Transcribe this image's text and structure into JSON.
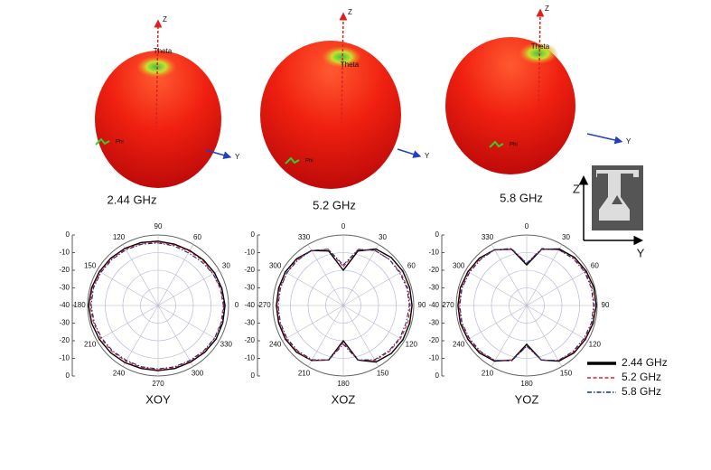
{
  "radiation_3d": [
    {
      "caption": "2.44 GHz",
      "z_label": "Z",
      "theta_label": "Theta",
      "phi_label": "Phi",
      "y_label": "Y"
    },
    {
      "caption": "5.2 GHz",
      "z_label": "Z",
      "theta_label": "Theta",
      "phi_label": "Phi",
      "y_label": "Y"
    },
    {
      "caption": "5.8 GHz",
      "z_label": "Z",
      "theta_label": "Theta",
      "phi_label": "Phi",
      "y_label": "Y"
    }
  ],
  "antenna_inset": {
    "z_label": "Z",
    "y_label": "Y"
  },
  "legend": {
    "position": "lower right",
    "entries": [
      {
        "name": "2.44 GHz",
        "color": "#000000",
        "dash": "solid"
      },
      {
        "name": "5.2 GHz",
        "color": "#e02020",
        "dash": "dashed"
      },
      {
        "name": "5.8 GHz",
        "color": "#1a2f8a",
        "dash": "dashdot"
      }
    ]
  },
  "chart_data": [
    {
      "type": "polar",
      "title": "XOY",
      "theta_zero": "E",
      "theta_direction": "counterclockwise",
      "rlim": [
        -40,
        0
      ],
      "rticks": [
        0,
        -10,
        -20,
        -30,
        -40
      ],
      "thetaticks": [
        0,
        30,
        60,
        90,
        120,
        150,
        180,
        210,
        240,
        270,
        300,
        330
      ],
      "theta": [
        0,
        15,
        30,
        45,
        60,
        75,
        90,
        105,
        120,
        135,
        150,
        165,
        180,
        195,
        210,
        225,
        240,
        255,
        270,
        285,
        300,
        315,
        330,
        345
      ],
      "series": [
        {
          "color": "#000000",
          "dash": "solid",
          "values": [
            -2,
            -2.5,
            -3,
            -3.5,
            -4,
            -4,
            -3.5,
            -3,
            -2.5,
            -2,
            -1.5,
            -1,
            -0.5,
            -1,
            -1.5,
            -2,
            -2.5,
            -3,
            -3,
            -3,
            -3,
            -2.5,
            -2,
            -2
          ]
        },
        {
          "color": "#e02020",
          "dash": "dashed",
          "values": [
            -3,
            -3.5,
            -4,
            -4,
            -4.5,
            -4.5,
            -4,
            -3.5,
            -3,
            -2.5,
            -2,
            -1.5,
            -1.5,
            -2,
            -2.5,
            -3,
            -3.5,
            -3.5,
            -3.5,
            -3.5,
            -3.5,
            -3,
            -3,
            -3
          ]
        },
        {
          "color": "#1a2f8a",
          "dash": "dashdot",
          "values": [
            -2.5,
            -3,
            -4,
            -5,
            -5.5,
            -5,
            -4.5,
            -4,
            -3.5,
            -3,
            -2.5,
            -2,
            -2,
            -2.5,
            -3,
            -3.5,
            -4,
            -4,
            -4,
            -4,
            -4,
            -3.5,
            -3,
            -2.5
          ]
        }
      ]
    },
    {
      "type": "polar",
      "title": "XOZ",
      "theta_zero": "N",
      "theta_direction": "clockwise",
      "rlim": [
        -40,
        0
      ],
      "rticks": [
        0,
        -10,
        -20,
        -30,
        -40
      ],
      "thetaticks": [
        0,
        30,
        60,
        90,
        120,
        150,
        180,
        210,
        240,
        270,
        300,
        330
      ],
      "theta": [
        0,
        15,
        30,
        45,
        60,
        75,
        90,
        105,
        120,
        135,
        150,
        165,
        180,
        195,
        210,
        225,
        240,
        255,
        270,
        285,
        300,
        315,
        330,
        345
      ],
      "series": [
        {
          "color": "#000000",
          "dash": "solid",
          "values": [
            -20,
            -8,
            -3,
            -1.5,
            -1,
            -1,
            -1,
            -1,
            -1,
            -1.5,
            -3,
            -8,
            -20,
            -8,
            -4,
            -2.5,
            -2,
            -2,
            -2,
            -2,
            -2,
            -2.5,
            -4,
            -8
          ]
        },
        {
          "color": "#e02020",
          "dash": "dashed",
          "values": [
            -18,
            -7,
            -4,
            -3,
            -2.5,
            -2,
            -2,
            -2,
            -2.5,
            -3,
            -4,
            -8,
            -19,
            -8,
            -4,
            -3,
            -2.5,
            -2.5,
            -2.5,
            -2.5,
            -3,
            -3,
            -4,
            -7
          ]
        },
        {
          "color": "#1a2f8a",
          "dash": "dashdot",
          "values": [
            -17,
            -7,
            -4,
            -3,
            -3,
            -2.5,
            -2.5,
            -3,
            -3,
            -3.5,
            -4.5,
            -8,
            -18,
            -8,
            -4.5,
            -3.5,
            -3,
            -3,
            -3,
            -3,
            -3,
            -3.5,
            -4,
            -7
          ]
        }
      ]
    },
    {
      "type": "polar",
      "title": "YOZ",
      "theta_zero": "N",
      "theta_direction": "clockwise",
      "rlim": [
        -40,
        0
      ],
      "rticks": [
        0,
        -10,
        -20,
        -30,
        -40
      ],
      "thetaticks": [
        0,
        30,
        60,
        90,
        120,
        150,
        180,
        210,
        240,
        270,
        300,
        330
      ],
      "theta": [
        0,
        15,
        30,
        45,
        60,
        75,
        90,
        105,
        120,
        135,
        150,
        165,
        180,
        195,
        210,
        225,
        240,
        255,
        270,
        285,
        300,
        315,
        330,
        345
      ],
      "series": [
        {
          "color": "#000000",
          "dash": "solid",
          "values": [
            -17,
            -7,
            -3,
            -1.5,
            -1,
            -0.5,
            -0.5,
            -1,
            -1.5,
            -2,
            -3.5,
            -8,
            -18,
            -8,
            -3.5,
            -2,
            -1.5,
            -1,
            -1,
            -1,
            -1.5,
            -2,
            -3.5,
            -7
          ]
        },
        {
          "color": "#e02020",
          "dash": "dashed",
          "values": [
            -16,
            -7,
            -3.5,
            -2,
            -1.5,
            -1.5,
            -1.5,
            -1.5,
            -2,
            -2.5,
            -4,
            -8,
            -17,
            -8,
            -4,
            -2.5,
            -2,
            -1.5,
            -1.5,
            -1.5,
            -2,
            -2.5,
            -3.5,
            -7
          ]
        },
        {
          "color": "#1a2f8a",
          "dash": "dashdot",
          "values": [
            -16,
            -6.5,
            -3.5,
            -2.5,
            -2,
            -2,
            -2,
            -2,
            -2.5,
            -3,
            -4,
            -8,
            -17,
            -7.5,
            -4,
            -3,
            -2.5,
            -2,
            -2,
            -2,
            -2.5,
            -3,
            -3.5,
            -6.5
          ]
        }
      ]
    }
  ]
}
